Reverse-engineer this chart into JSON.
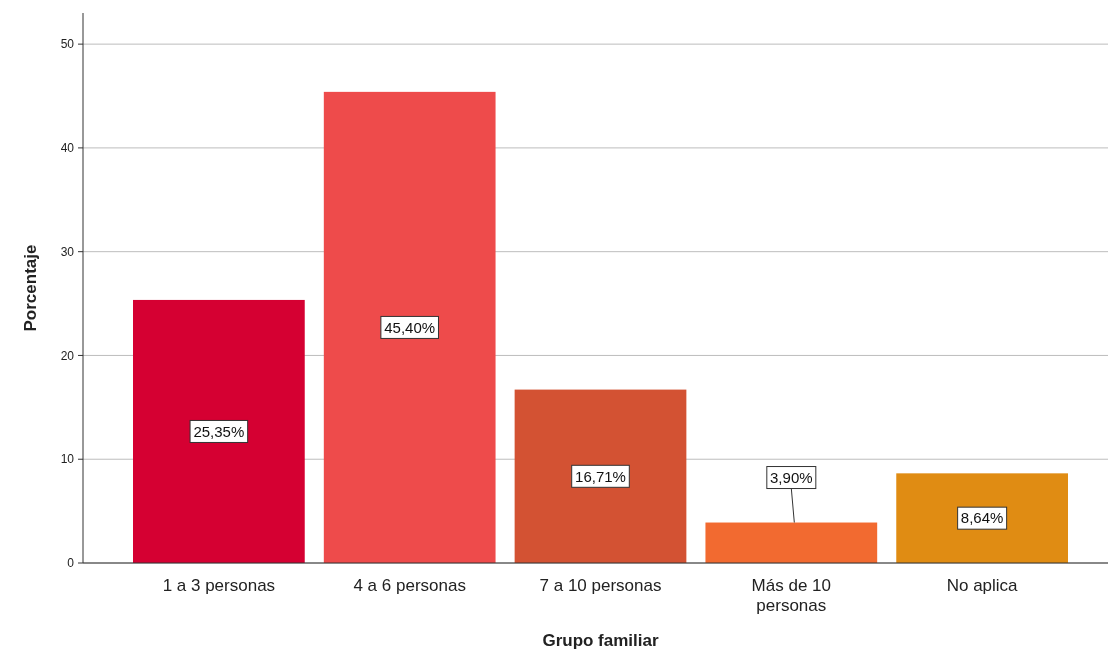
{
  "chart_data": {
    "type": "bar",
    "xlabel": "Grupo familiar",
    "ylabel": "Porcentaje",
    "categories": [
      "1 a 3 personas",
      "4 a 6 personas",
      "7 a 10 personas",
      "Más de 10 personas",
      "No aplica"
    ],
    "values": [
      25.35,
      45.4,
      16.71,
      3.9,
      8.64
    ],
    "colors": [
      "#d50032",
      "#ee4b4b",
      "#d35233",
      "#f26a30",
      "#e08c13"
    ],
    "value_labels": [
      "25,35%",
      "45,40%",
      "16,71%",
      "3,90%",
      "8,64%"
    ],
    "ylim": [
      0,
      53
    ],
    "yticks": [
      0,
      10,
      20,
      30,
      40,
      50
    ],
    "grid": "y"
  }
}
